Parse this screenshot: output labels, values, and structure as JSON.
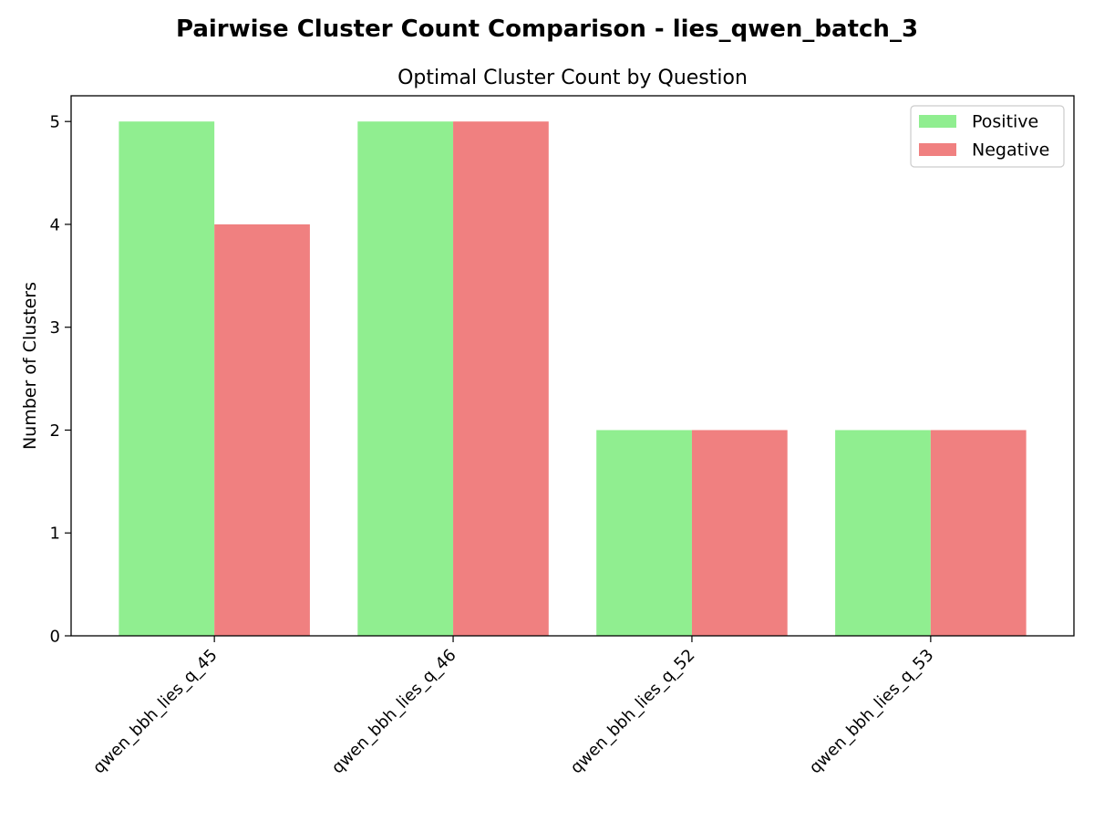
{
  "chart_data": {
    "type": "bar",
    "suptitle": "Pairwise Cluster Count Comparison - lies_qwen_batch_3",
    "title": "Optimal Cluster Count by Question",
    "xlabel": "",
    "ylabel": "Number of Clusters",
    "categories": [
      "qwen_bbh_lies_q_45",
      "qwen_bbh_lies_q_46",
      "qwen_bbh_lies_q_52",
      "qwen_bbh_lies_q_53"
    ],
    "series": [
      {
        "name": "Positive",
        "color": "#90ee90",
        "values": [
          5,
          5,
          2,
          2
        ]
      },
      {
        "name": "Negative",
        "color": "#f08080",
        "values": [
          4,
          5,
          2,
          2
        ]
      }
    ],
    "ylim": [
      0,
      5.25
    ],
    "yticks": [
      0,
      1,
      2,
      3,
      4,
      5
    ],
    "grid": false,
    "legend_position": "top-right"
  }
}
